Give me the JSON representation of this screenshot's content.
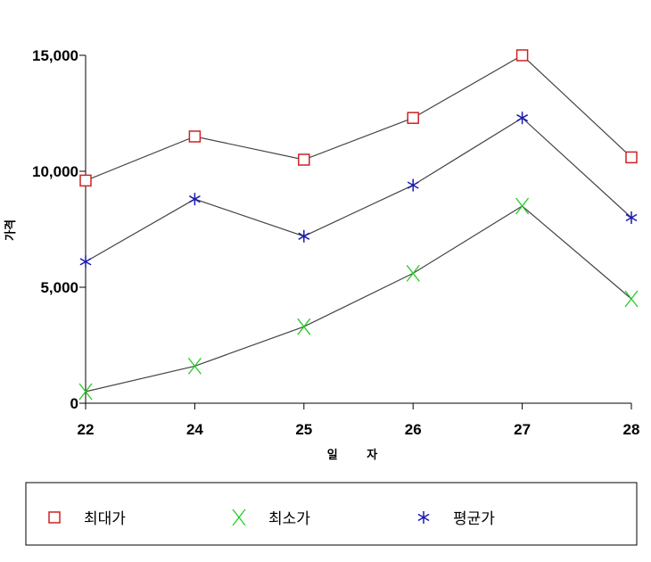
{
  "chart_data": {
    "type": "line",
    "title": "",
    "xlabel": "일 자",
    "ylabel": "가격",
    "categories": [
      "22",
      "24",
      "25",
      "26",
      "27",
      "28"
    ],
    "ylim": [
      0,
      15000
    ],
    "yticks": [
      0,
      5000,
      10000,
      15000
    ],
    "ytick_labels": [
      "0",
      "5,000",
      "10,000",
      "15,000"
    ],
    "grid": false,
    "legend_position": "bottom",
    "series": [
      {
        "name": "최대가",
        "marker": "square",
        "color": "#cc2222",
        "values": [
          9600,
          11500,
          10500,
          12300,
          15000,
          10600
        ]
      },
      {
        "name": "최소가",
        "marker": "x",
        "color": "#22cc22",
        "values": [
          500,
          1600,
          3300,
          5600,
          8500,
          4500
        ]
      },
      {
        "name": "평균가",
        "marker": "asterisk",
        "color": "#1a1aaa",
        "values": [
          6100,
          8800,
          7200,
          9400,
          12300,
          8000
        ]
      }
    ]
  }
}
